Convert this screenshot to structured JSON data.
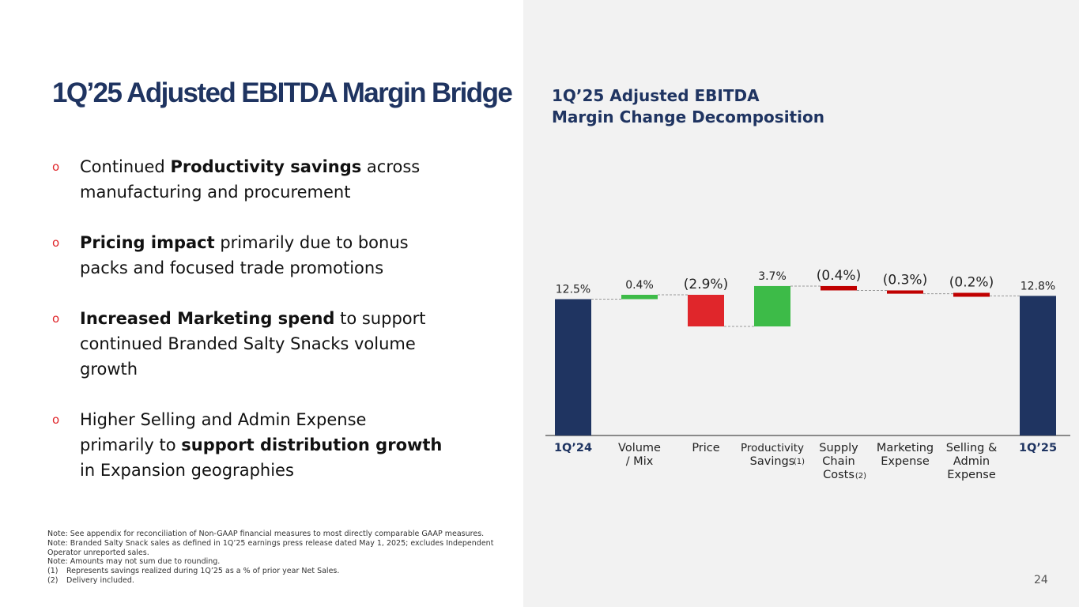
{
  "slide": {
    "title": "1Q’25 Adjusted EBITDA Margin Bridge",
    "page_number": "24"
  },
  "colors": {
    "navy": "#1f3461",
    "green": "#3dbb48",
    "red": "#e0262b",
    "dark_red": "#c00000",
    "panel_bg": "#f2f2f2"
  },
  "bullets": [
    {
      "segments": [
        {
          "lines": [
            [
              {
                "text": "Continued ",
                "bold": false
              },
              {
                "text": "Productivity savings",
                "bold": true
              },
              {
                "text": " across",
                "bold": false
              }
            ],
            [
              {
                "text": "manufacturing and procurement",
                "bold": false
              }
            ]
          ]
        }
      ]
    },
    {
      "segments": [
        {
          "lines": [
            [
              {
                "text": "Pricing impact",
                "bold": true
              },
              {
                "text": " primarily due to bonus",
                "bold": false
              }
            ],
            [
              {
                "text": "packs and focused trade promotions",
                "bold": false
              }
            ]
          ]
        }
      ]
    },
    {
      "segments": [
        {
          "lines": [
            [
              {
                "text": "Increased Marketing spend",
                "bold": true
              },
              {
                "text": " to support",
                "bold": false
              }
            ],
            [
              {
                "text": "continued Branded Salty Snacks volume",
                "bold": false
              }
            ],
            [
              {
                "text": "growth",
                "bold": false
              }
            ]
          ]
        }
      ]
    },
    {
      "segments": [
        {
          "lines": [
            [
              {
                "text": "Higher Selling and Admin Expense",
                "bold": false
              }
            ],
            [
              {
                "text": "primarily to ",
                "bold": false
              },
              {
                "text": "support distribution growth",
                "bold": true
              }
            ],
            [
              {
                "text": "in Expansion geographies",
                "bold": false
              }
            ]
          ]
        }
      ]
    }
  ],
  "bullet_marker": "o",
  "notes": [
    {
      "num": "",
      "text": "Note: See appendix for reconciliation of Non-GAAP financial measures to most directly comparable GAAP measures."
    },
    {
      "num": "",
      "text": "Note: Branded Salty Snack sales as defined in 1Q’25 earnings press release dated May 1, 2025; excludes Independent"
    },
    {
      "num": "",
      "text": "Operator unreported sales."
    },
    {
      "num": "",
      "text": "Note: Amounts may not sum due to rounding."
    },
    {
      "num": "(1)",
      "text": "Represents savings realized during 1Q’25 as a % of prior year Net Sales."
    },
    {
      "num": "(2)",
      "text": "Delivery included."
    }
  ],
  "chart_data": {
    "type": "bar",
    "subtype": "waterfall",
    "title_lines": [
      "1Q’25 Adjusted EBITDA",
      "Margin Change Decomposition"
    ],
    "unit": "%",
    "ylim": [
      0,
      13.5
    ],
    "steps": [
      {
        "name": "1Q’24",
        "label_lines": [
          "1Q’24"
        ],
        "bold": true,
        "kind": "total",
        "value": 12.5,
        "value_label": "12.5%",
        "footnote": ""
      },
      {
        "name": "Volume / Mix",
        "label_lines": [
          "Volume",
          "/ Mix"
        ],
        "bold": false,
        "kind": "delta",
        "value": 0.4,
        "value_label": "0.4%",
        "footnote": ""
      },
      {
        "name": "Price",
        "label_lines": [
          "Price"
        ],
        "bold": false,
        "kind": "delta",
        "value": -2.9,
        "value_label": "(2.9%)",
        "footnote": ""
      },
      {
        "name": "Productivity Savings",
        "label_lines": [
          "Productivity",
          "Savings"
        ],
        "bold": false,
        "kind": "delta",
        "value": 3.7,
        "value_label": "3.7%",
        "footnote": "(1)"
      },
      {
        "name": "Supply Chain Costs",
        "label_lines": [
          "Supply",
          "Chain",
          "Costs"
        ],
        "bold": false,
        "kind": "delta",
        "value": -0.4,
        "value_label": "(0.4%)",
        "footnote": "(2)"
      },
      {
        "name": "Marketing Expense",
        "label_lines": [
          "Marketing",
          "Expense"
        ],
        "bold": false,
        "kind": "delta",
        "value": -0.3,
        "value_label": "(0.3%)",
        "footnote": ""
      },
      {
        "name": "Selling & Admin Expense",
        "label_lines": [
          "Selling &",
          "Admin",
          "Expense"
        ],
        "bold": false,
        "kind": "delta",
        "value": -0.2,
        "value_label": "(0.2%)",
        "footnote": ""
      },
      {
        "name": "1Q’25",
        "label_lines": [
          "1Q’25"
        ],
        "bold": true,
        "kind": "total",
        "value": 12.8,
        "value_label": "12.8%",
        "footnote": ""
      }
    ]
  }
}
